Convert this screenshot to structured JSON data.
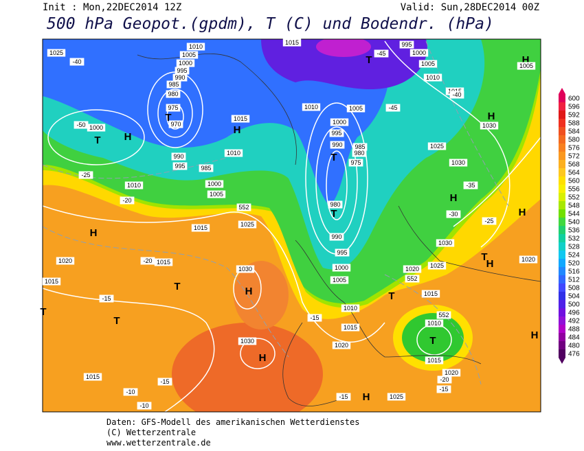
{
  "header": {
    "init": "Init : Mon,22DEC2014 12Z",
    "valid": "Valid: Sun,28DEC2014 00Z",
    "title": "500 hPa Geopot.(gpdm), T (C) und Bodendr. (hPa)"
  },
  "map": {
    "labels": [
      "1025",
      "-40",
      "1010",
      "1005",
      "1000",
      "995",
      "990",
      "985",
      "980",
      "975",
      "970",
      "T",
      "1000",
      "T",
      "H",
      "-50",
      "H",
      "1015",
      "1010",
      "990",
      "995",
      "985",
      "1000",
      "1005",
      "1010",
      "-25",
      "-20",
      "552",
      "1015",
      "1025",
      "H",
      "1020",
      "1015",
      "-20",
      "T",
      "1030",
      "H",
      "1015",
      "-15",
      "T",
      "T",
      "1030",
      "H",
      "1015",
      "-15",
      "-10",
      "-10",
      "1015",
      "-45",
      "995",
      "1000",
      "1005",
      "T",
      "H",
      "1005",
      "1010",
      "1015",
      "-40",
      "-45",
      "1010",
      "1005",
      "1000",
      "995",
      "990",
      "985",
      "980",
      "975",
      "T",
      "H",
      "1030",
      "1025",
      "1030",
      "-35",
      "H",
      "-30",
      "-25",
      "H",
      "980",
      "T",
      "990",
      "995",
      "1000",
      "1005",
      "1010",
      "1015",
      "1020",
      "-15",
      "1030",
      "1025",
      "1020",
      "552",
      "T",
      "H",
      "1020",
      "1015",
      "T",
      "552",
      "1010",
      "T",
      "1015",
      "1020",
      "-20",
      "-15",
      "H",
      "-15",
      "H",
      "1025"
    ]
  },
  "colorbar": {
    "levels": [
      600,
      596,
      592,
      588,
      584,
      580,
      576,
      572,
      568,
      564,
      560,
      556,
      552,
      548,
      544,
      540,
      536,
      532,
      528,
      524,
      520,
      516,
      512,
      508,
      504,
      500,
      496,
      492,
      488,
      484,
      480,
      476
    ],
    "colors": [
      "#e0005a",
      "#f02040",
      "#e01818",
      "#f03020",
      "#f05020",
      "#f46a20",
      "#f88020",
      "#fa9820",
      "#fcb020",
      "#fec820",
      "#ffe000",
      "#f8f000",
      "#d8f000",
      "#a8e800",
      "#70e000",
      "#40d840",
      "#20d070",
      "#10d0a0",
      "#10d0c8",
      "#10c8f0",
      "#10a8ff",
      "#2088ff",
      "#3068ff",
      "#4048ff",
      "#3030e8",
      "#5020e8",
      "#7010e0",
      "#9010d8",
      "#b000c8",
      "#9000a0",
      "#700080",
      "#500060"
    ]
  },
  "footer": {
    "lines": [
      "Daten: GFS-Modell des amerikanischen Wetterdienstes",
      "(C) Wetterzentrale",
      "www.wetterzentrale.de"
    ]
  }
}
